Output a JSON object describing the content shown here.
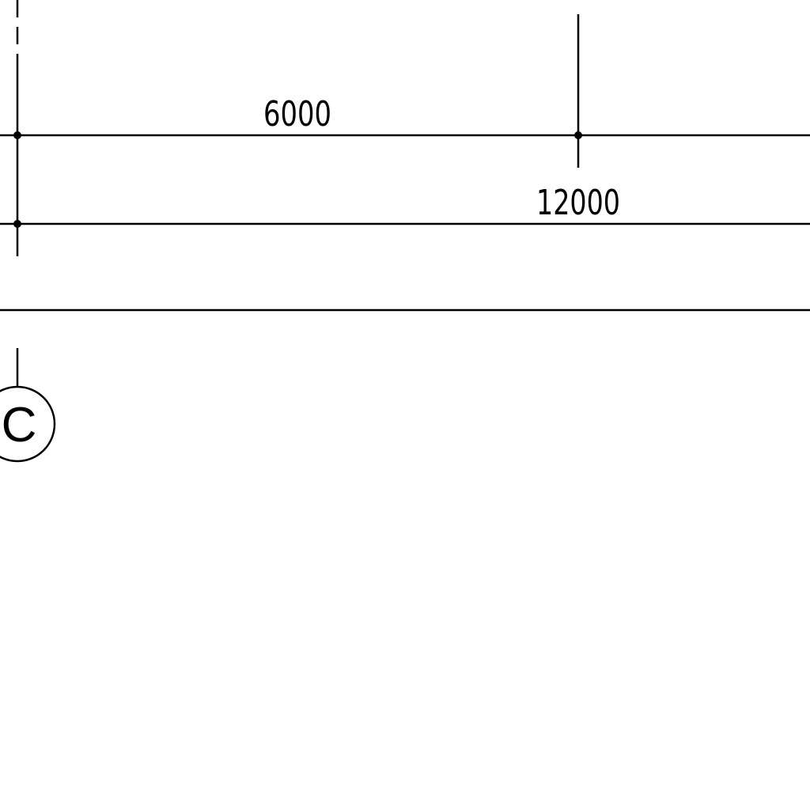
{
  "dimensions": {
    "first_dim": "6000",
    "second_dim": "12000"
  },
  "grid_bubbles": [
    {
      "label": "C"
    }
  ],
  "colors": {
    "ink": "#000000",
    "paper": "#ffffff"
  }
}
